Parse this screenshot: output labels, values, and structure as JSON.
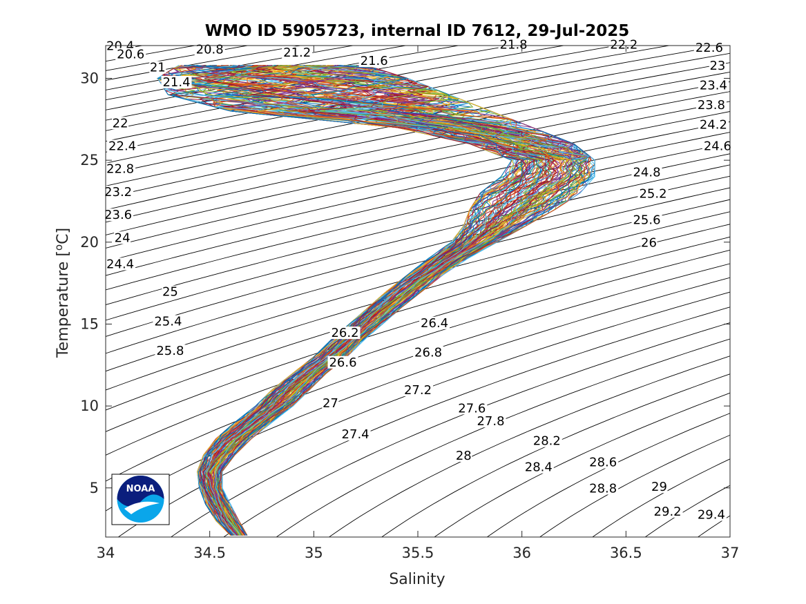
{
  "chart_data": {
    "type": "line",
    "title": "WMO ID 5905723, internal ID 7612, 29-Jul-2025",
    "xlabel": "Salinity",
    "ylabel": "Temperature [",
    "ylabel_sup": "o",
    "ylabel_end": "C]",
    "xlim": [
      34,
      37
    ],
    "ylim": [
      2,
      32
    ],
    "xticks": [
      34,
      34.5,
      35,
      35.5,
      36,
      36.5,
      37
    ],
    "xtick_labels": [
      "34",
      "34.5",
      "35",
      "35.5",
      "36",
      "36.5",
      "37"
    ],
    "yticks": [
      5,
      10,
      15,
      20,
      25,
      30
    ],
    "ytick_labels": [
      "5",
      "10",
      "15",
      "20",
      "25",
      "30"
    ],
    "grid": false,
    "legend": "none",
    "profile_colors": [
      "#0072BD",
      "#D95319",
      "#EDB120",
      "#7E2F8E",
      "#77AC30",
      "#4DBEEE",
      "#A2142F"
    ],
    "profile_count": 120,
    "profile_envelope": [
      {
        "t": 2.1,
        "s_min": 34.6,
        "s_max": 34.68
      },
      {
        "t": 3,
        "s_min": 34.53,
        "s_max": 34.64
      },
      {
        "t": 4,
        "s_min": 34.48,
        "s_max": 34.6
      },
      {
        "t": 5,
        "s_min": 34.45,
        "s_max": 34.56
      },
      {
        "t": 6,
        "s_min": 34.44,
        "s_max": 34.56
      },
      {
        "t": 7,
        "s_min": 34.47,
        "s_max": 34.62
      },
      {
        "t": 8,
        "s_min": 34.53,
        "s_max": 34.7
      },
      {
        "t": 9,
        "s_min": 34.62,
        "s_max": 34.8
      },
      {
        "t": 10,
        "s_min": 34.72,
        "s_max": 34.9
      },
      {
        "t": 11,
        "s_min": 34.8,
        "s_max": 34.98
      },
      {
        "t": 12,
        "s_min": 34.9,
        "s_max": 35.06
      },
      {
        "t": 13,
        "s_min": 35.0,
        "s_max": 35.16
      },
      {
        "t": 14,
        "s_min": 35.08,
        "s_max": 35.24
      },
      {
        "t": 15,
        "s_min": 35.17,
        "s_max": 35.33
      },
      {
        "t": 16,
        "s_min": 35.26,
        "s_max": 35.42
      },
      {
        "t": 17,
        "s_min": 35.35,
        "s_max": 35.52
      },
      {
        "t": 18,
        "s_min": 35.45,
        "s_max": 35.62
      },
      {
        "t": 19,
        "s_min": 35.55,
        "s_max": 35.74
      },
      {
        "t": 20,
        "s_min": 35.66,
        "s_max": 35.88
      },
      {
        "t": 21,
        "s_min": 35.72,
        "s_max": 36.02
      },
      {
        "t": 22,
        "s_min": 35.75,
        "s_max": 36.16
      },
      {
        "t": 23,
        "s_min": 35.8,
        "s_max": 36.28
      },
      {
        "t": 24,
        "s_min": 35.9,
        "s_max": 36.35
      },
      {
        "t": 25,
        "s_min": 35.95,
        "s_max": 36.35
      },
      {
        "t": 26,
        "s_min": 35.75,
        "s_max": 36.25
      },
      {
        "t": 27,
        "s_min": 35.4,
        "s_max": 36.05
      },
      {
        "t": 28,
        "s_min": 34.6,
        "s_max": 35.85
      },
      {
        "t": 29,
        "s_min": 34.3,
        "s_max": 35.65
      },
      {
        "t": 30,
        "s_min": 34.25,
        "s_max": 35.45
      },
      {
        "t": 30.8,
        "s_min": 34.35,
        "s_max": 35.25
      }
    ],
    "density_levels": [
      20.2,
      20.4,
      20.6,
      20.8,
      21,
      21.2,
      21.4,
      21.6,
      21.8,
      22,
      22.2,
      22.4,
      22.6,
      22.8,
      23,
      23.2,
      23.4,
      23.6,
      23.8,
      24,
      24.2,
      24.4,
      24.6,
      24.8,
      25,
      25.2,
      25.4,
      25.6,
      25.8,
      26,
      26.2,
      26.4,
      26.6,
      26.8,
      27,
      27.2,
      27.4,
      27.6,
      27.8,
      28,
      28.2,
      28.4,
      28.6,
      28.8,
      29,
      29.2,
      29.4,
      29.6,
      29.8
    ],
    "contour_labels": [
      {
        "text": "20.4",
        "s": 34.07,
        "t": 31.8
      },
      {
        "text": "20.6",
        "s": 34.12,
        "t": 31.3
      },
      {
        "text": "20.8",
        "s": 34.5,
        "t": 31.6
      },
      {
        "text": "21",
        "s": 34.25,
        "t": 30.5
      },
      {
        "text": "21.2",
        "s": 34.92,
        "t": 31.4
      },
      {
        "text": "21.4",
        "s": 34.34,
        "t": 29.6
      },
      {
        "text": "21.6",
        "s": 35.29,
        "t": 30.9
      },
      {
        "text": "21.8",
        "s": 35.96,
        "t": 31.9
      },
      {
        "text": "22.2",
        "s": 36.49,
        "t": 31.9
      },
      {
        "text": "22.6",
        "s": 36.9,
        "t": 31.7
      },
      {
        "text": "23",
        "s": 36.94,
        "t": 30.6
      },
      {
        "text": "23.4",
        "s": 36.92,
        "t": 29.4
      },
      {
        "text": "23.8",
        "s": 36.91,
        "t": 28.2
      },
      {
        "text": "24.2",
        "s": 36.92,
        "t": 27.0
      },
      {
        "text": "24.6",
        "s": 36.94,
        "t": 25.7
      },
      {
        "text": "22",
        "s": 34.07,
        "t": 27.1
      },
      {
        "text": "22.4",
        "s": 34.08,
        "t": 25.7
      },
      {
        "text": "22.8",
        "s": 34.07,
        "t": 24.3
      },
      {
        "text": "23.2",
        "s": 34.06,
        "t": 22.9
      },
      {
        "text": "23.6",
        "s": 34.06,
        "t": 21.5
      },
      {
        "text": "24",
        "s": 34.08,
        "t": 20.1
      },
      {
        "text": "24.4",
        "s": 34.07,
        "t": 18.5
      },
      {
        "text": "24.8",
        "s": 36.6,
        "t": 24.1
      },
      {
        "text": "25.2",
        "s": 36.63,
        "t": 22.8
      },
      {
        "text": "25.6",
        "s": 36.6,
        "t": 21.2
      },
      {
        "text": "26",
        "s": 36.61,
        "t": 19.8
      },
      {
        "text": "25",
        "s": 34.31,
        "t": 16.8
      },
      {
        "text": "25.4",
        "s": 34.3,
        "t": 15.0
      },
      {
        "text": "25.8",
        "s": 34.31,
        "t": 13.2
      },
      {
        "text": "26.2",
        "s": 35.15,
        "t": 14.3
      },
      {
        "text": "26.4",
        "s": 35.58,
        "t": 14.9
      },
      {
        "text": "26.6",
        "s": 35.14,
        "t": 12.5
      },
      {
        "text": "26.8",
        "s": 35.55,
        "t": 13.1
      },
      {
        "text": "27",
        "s": 35.08,
        "t": 10.0
      },
      {
        "text": "27.2",
        "s": 35.5,
        "t": 10.8
      },
      {
        "text": "27.4",
        "s": 35.2,
        "t": 8.1
      },
      {
        "text": "27.6",
        "s": 35.76,
        "t": 9.7
      },
      {
        "text": "27.8",
        "s": 35.85,
        "t": 8.9
      },
      {
        "text": "28",
        "s": 35.72,
        "t": 6.8
      },
      {
        "text": "28.2",
        "s": 36.12,
        "t": 7.7
      },
      {
        "text": "28.4",
        "s": 36.08,
        "t": 6.1
      },
      {
        "text": "28.6",
        "s": 36.39,
        "t": 6.4
      },
      {
        "text": "28.8",
        "s": 36.39,
        "t": 4.8
      },
      {
        "text": "29",
        "s": 36.66,
        "t": 4.9
      },
      {
        "text": "29.2",
        "s": 36.7,
        "t": 3.4
      },
      {
        "text": "29.4",
        "s": 36.91,
        "t": 3.2
      }
    ]
  },
  "logo": {
    "text": "NOAA",
    "colors": {
      "navy": "#0b1e7d",
      "sky": "#0aa6ea",
      "white": "#ffffff"
    }
  }
}
